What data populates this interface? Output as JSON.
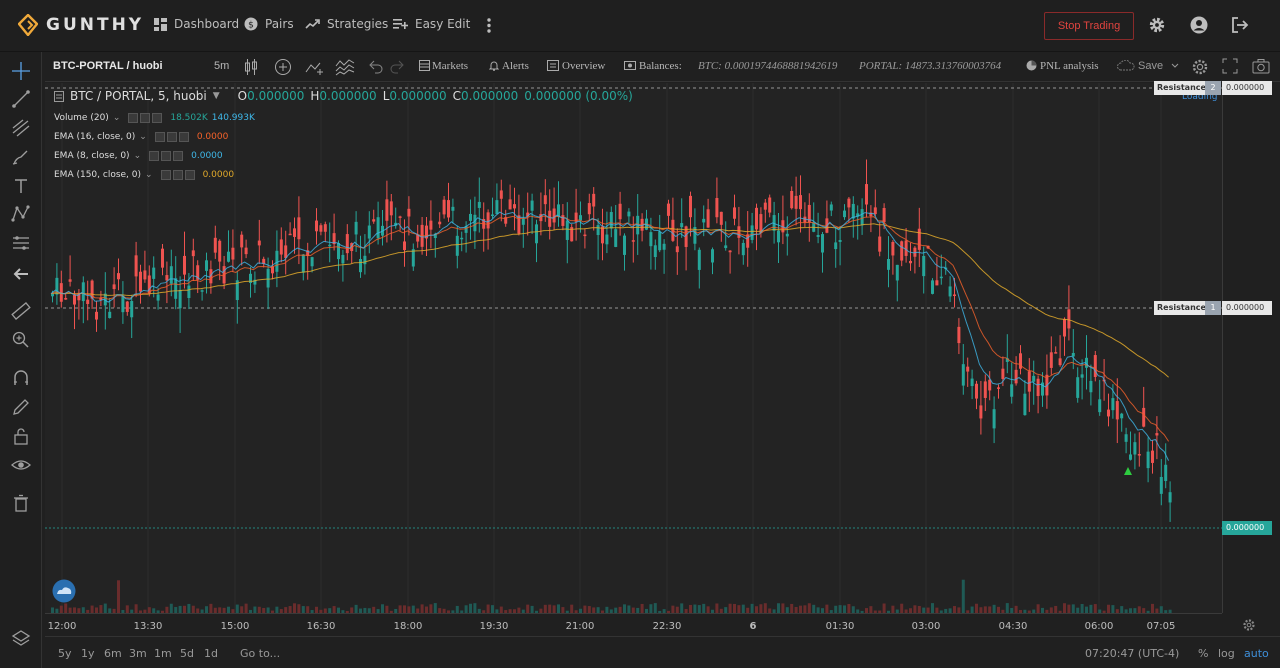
{
  "app": {
    "name": "GUNTHY"
  },
  "nav": {
    "dashboard": "Dashboard",
    "pairs": "Pairs",
    "strategies": "Strategies",
    "easy_edit": "Easy Edit"
  },
  "top_actions": {
    "stop_trading": "Stop Trading",
    "icons": [
      "more-vert-icon",
      "gear-icon",
      "user-circle-icon",
      "logout-icon"
    ]
  },
  "toolbar": {
    "symbol": "BTC-PORTAL / huobi",
    "interval": "5m",
    "markets": "Markets",
    "alerts": "Alerts",
    "overview": "Overview",
    "balances": "Balances:",
    "btc_balance": "BTC: 0.0001974468881942619",
    "portal_balance": "PORTAL: 14873.313760003764",
    "pnl": "PNL analysis",
    "save": "Save"
  },
  "legend": {
    "title": "BTC / PORTAL, 5, huobi",
    "o_label": "O",
    "o": "0.000000",
    "h_label": "H",
    "h": "0.000000",
    "l_label": "L",
    "l": "0.000000",
    "c_label": "C",
    "c": "0.000000",
    "change": "0.000000 (0.00%)",
    "volume": {
      "name": "Volume (20)",
      "v1": "18.502K",
      "v2": "140.993K"
    },
    "ema16": {
      "name": "EMA (16, close, 0)",
      "value": "0.0000",
      "color": "#f5622a"
    },
    "ema8": {
      "name": "EMA (8, close, 0)",
      "value": "0.0000",
      "color": "#3fb7e8"
    },
    "ema150": {
      "name": "EMA (150, close, 0)",
      "value": "0.0000",
      "color": "#e0a92a"
    }
  },
  "overlays": {
    "loading": "Loading",
    "res2_label": "Resistance",
    "res2_num": "2",
    "res2_price": "0.000000",
    "res1_label": "Resistance",
    "res1_num": "1",
    "res1_price": "0.000000",
    "last_price": "0.000000"
  },
  "time_axis": [
    "12:00",
    "13:30",
    "15:00",
    "16:30",
    "18:00",
    "19:30",
    "21:00",
    "22:30",
    "6",
    "01:30",
    "03:00",
    "04:30",
    "06:00",
    "07:05"
  ],
  "bottom": {
    "ranges": [
      "5y",
      "1y",
      "6m",
      "3m",
      "1m",
      "5d",
      "1d"
    ],
    "goto": "Go to...",
    "clock": "07:20:47 (UTC-4)",
    "pct": "%",
    "log": "log",
    "auto": "auto"
  },
  "colors": {
    "up": "#26a69a",
    "down": "#ef5350",
    "accent": "#e0443f",
    "brand": "#f0a93a"
  }
}
